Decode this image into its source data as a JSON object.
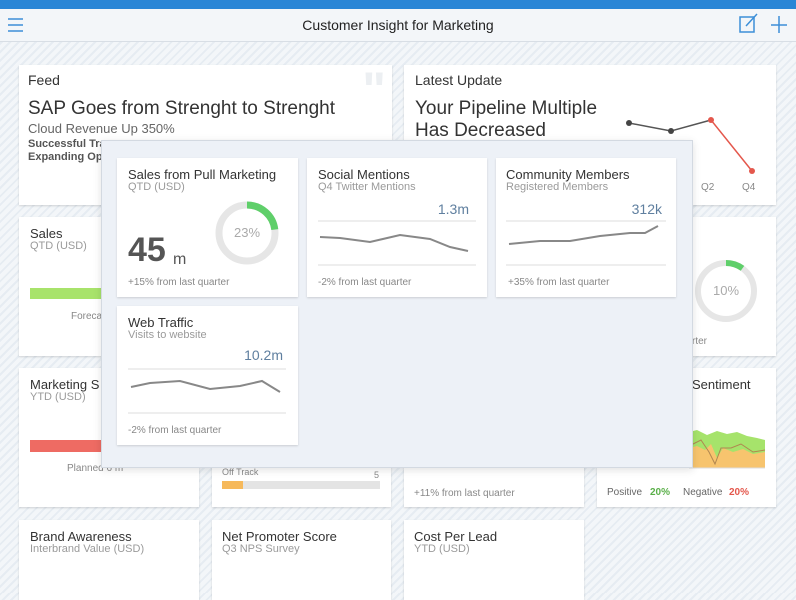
{
  "header": {
    "title": "Customer Insight for Marketing"
  },
  "background_cards": {
    "feed": {
      "label": "Feed",
      "headline": "SAP Goes from Strenght to Strenght",
      "subheadline": "Cloud Revenue Up 350%",
      "lines": [
        "Successful Tra",
        "Expanding Op"
      ]
    },
    "latest_update": {
      "label": "Latest Update",
      "headline_lines": [
        "Your Pipeline Multiple",
        "Has Decreased"
      ],
      "axis_labels": [
        "Q2",
        "Q4"
      ]
    },
    "sales": {
      "title": "Sales",
      "subtitle": "QTD (USD)",
      "note": "Foreca"
    },
    "quarter_card": {
      "percent": 10,
      "percent_label": "10%",
      "note": "rter"
    },
    "marketing": {
      "title": "Marketing S",
      "subtitle": "YTD (USD)",
      "note": "Planned 6 m"
    },
    "track": {
      "status": "Off Track",
      "count": "5"
    },
    "growth": {
      "footer": "+11% from last quarter"
    },
    "sentiment": {
      "title": "Sentiment",
      "positive_label": "Positive",
      "positive_value": "20%",
      "negative_label": "Negative",
      "negative_value": "20%"
    },
    "bottom": [
      {
        "title": "Brand Awareness",
        "subtitle": "Interbrand Value (USD)"
      },
      {
        "title": "Net Promoter Score",
        "subtitle": "Q3 NPS Survey"
      },
      {
        "title": "Cost Per Lead",
        "subtitle": "YTD (USD)"
      }
    ]
  },
  "overlay": {
    "cards": [
      {
        "title": "Sales from Pull Marketing",
        "subtitle": "QTD (USD)",
        "value": "45",
        "unit": "m",
        "percent": 23,
        "percent_label": "23%",
        "footer": "+15% from last quarter"
      },
      {
        "title": "Social Mentions",
        "subtitle": "Q4 Twitter Mentions",
        "value": "1.3m",
        "footer": "-2% from last quarter"
      },
      {
        "title": "Community Members",
        "subtitle": "Registered Members",
        "value": "312k",
        "footer": "+35% from last quarter"
      },
      {
        "title": "Web Traffic",
        "subtitle": "Visits to website",
        "value": "10.2m",
        "footer": "-2% from last quarter"
      }
    ]
  }
}
